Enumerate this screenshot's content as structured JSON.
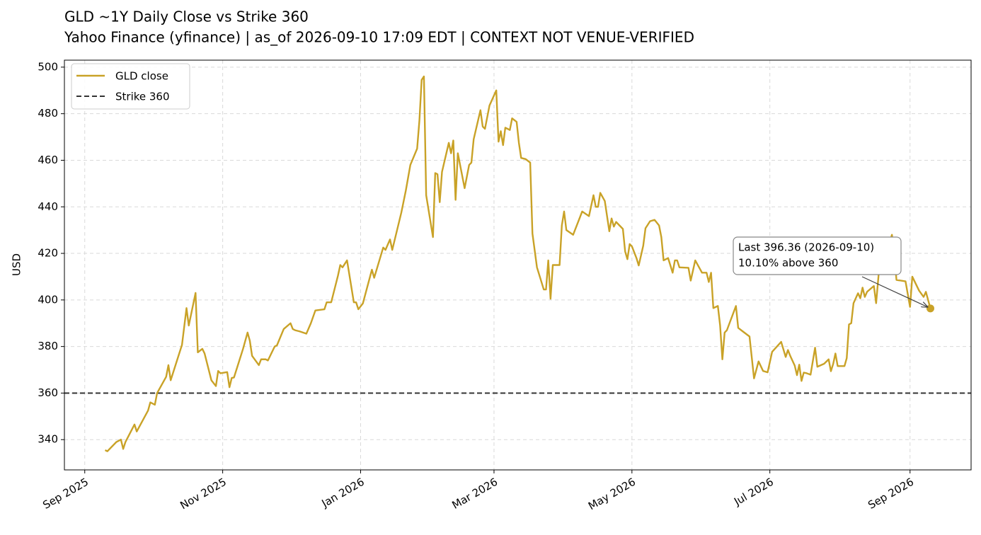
{
  "chart_data": {
    "type": "line",
    "title": "GLD ~1Y Daily Close vs Strike 360",
    "subtitle": "Yahoo Finance (yfinance) | as_of 2026-09-10 17:09 EDT | CONTEXT NOT VENUE-VERIFIED",
    "ylabel": "USD",
    "grid": true,
    "legend": "upper left",
    "x": [
      "2025-09-10",
      "2025-09-11",
      "2025-09-15",
      "2025-09-17",
      "2025-09-18",
      "2025-09-19",
      "2025-09-23",
      "2025-09-24",
      "2025-09-29",
      "2025-09-30",
      "2025-10-02",
      "2025-10-03",
      "2025-10-07",
      "2025-10-08",
      "2025-10-09",
      "2025-10-14",
      "2025-10-16",
      "2025-10-17",
      "2025-10-20",
      "2025-10-21",
      "2025-10-23",
      "2025-10-24",
      "2025-10-27",
      "2025-10-29",
      "2025-10-30",
      "2025-10-31",
      "2025-11-03",
      "2025-11-04",
      "2025-11-05",
      "2025-11-06",
      "2025-11-10",
      "2025-11-12",
      "2025-11-13",
      "2025-11-14",
      "2025-11-17",
      "2025-11-18",
      "2025-11-20",
      "2025-11-21",
      "2025-11-24",
      "2025-11-25",
      "2025-11-28",
      "2025-12-01",
      "2025-12-02",
      "2025-12-03",
      "2025-12-05",
      "2025-12-08",
      "2025-12-10",
      "2025-12-12",
      "2025-12-16",
      "2025-12-17",
      "2025-12-19",
      "2025-12-22",
      "2025-12-23",
      "2025-12-24",
      "2025-12-26",
      "2025-12-29",
      "2025-12-30",
      "2025-12-31",
      "2026-01-02",
      "2026-01-06",
      "2026-01-07",
      "2026-01-11",
      "2026-01-12",
      "2026-01-14",
      "2026-01-15",
      "2026-01-19",
      "2026-01-21",
      "2026-01-23",
      "2026-01-26",
      "2026-01-27",
      "2026-01-28",
      "2026-01-29",
      "2026-01-30",
      "2026-02-02",
      "2026-02-03",
      "2026-02-04",
      "2026-02-05",
      "2026-02-06",
      "2026-02-09",
      "2026-02-10",
      "2026-02-11",
      "2026-02-12",
      "2026-02-13",
      "2026-02-16",
      "2026-02-18",
      "2026-02-19",
      "2026-02-20",
      "2026-02-23",
      "2026-02-24",
      "2026-02-25",
      "2026-02-27",
      "2026-03-02",
      "2026-03-03",
      "2026-03-04",
      "2026-03-05",
      "2026-03-06",
      "2026-03-08",
      "2026-03-09",
      "2026-03-11",
      "2026-03-12",
      "2026-03-13",
      "2026-03-15",
      "2026-03-17",
      "2026-03-18",
      "2026-03-20",
      "2026-03-23",
      "2026-03-24",
      "2026-03-25",
      "2026-03-26",
      "2026-03-27",
      "2026-03-30",
      "2026-03-31",
      "2026-04-01",
      "2026-04-02",
      "2026-04-05",
      "2026-04-07",
      "2026-04-09",
      "2026-04-12",
      "2026-04-14",
      "2026-04-15",
      "2026-04-16",
      "2026-04-17",
      "2026-04-19",
      "2026-04-21",
      "2026-04-22",
      "2026-04-23",
      "2026-04-24",
      "2026-04-27",
      "2026-04-28",
      "2026-04-29",
      "2026-04-30",
      "2026-05-01",
      "2026-05-03",
      "2026-05-04",
      "2026-05-06",
      "2026-05-07",
      "2026-05-08",
      "2026-05-09",
      "2026-05-11",
      "2026-05-13",
      "2026-05-14",
      "2026-05-15",
      "2026-05-17",
      "2026-05-19",
      "2026-05-20",
      "2026-05-21",
      "2026-05-22",
      "2026-05-26",
      "2026-05-27",
      "2026-05-29",
      "2026-06-01",
      "2026-06-03",
      "2026-06-04",
      "2026-06-05",
      "2026-06-06",
      "2026-06-08",
      "2026-06-09",
      "2026-06-10",
      "2026-06-11",
      "2026-06-12",
      "2026-06-16",
      "2026-06-17",
      "2026-06-19",
      "2026-06-22",
      "2026-06-24",
      "2026-06-26",
      "2026-06-28",
      "2026-06-30",
      "2026-07-02",
      "2026-07-06",
      "2026-07-08",
      "2026-07-09",
      "2026-07-10",
      "2026-07-12",
      "2026-07-13",
      "2026-07-14",
      "2026-07-15",
      "2026-07-16",
      "2026-07-17",
      "2026-07-19",
      "2026-07-21",
      "2026-07-22",
      "2026-07-25",
      "2026-07-27",
      "2026-07-28",
      "2026-07-29",
      "2026-07-30",
      "2026-07-31",
      "2026-08-03",
      "2026-08-04",
      "2026-08-05",
      "2026-08-06",
      "2026-08-07",
      "2026-08-09",
      "2026-08-10",
      "2026-08-11",
      "2026-08-12",
      "2026-08-13",
      "2026-08-16",
      "2026-08-17",
      "2026-08-19",
      "2026-08-22",
      "2026-08-24",
      "2026-08-25",
      "2026-08-26",
      "2026-08-30",
      "2026-09-01",
      "2026-09-02",
      "2026-09-05",
      "2026-09-07",
      "2026-09-08",
      "2026-09-10"
    ],
    "series": [
      {
        "name": "GLD close",
        "color": "#c9a227",
        "values": [
          335.5,
          335,
          339,
          340,
          336,
          339,
          346.5,
          343.5,
          352.5,
          356,
          355,
          360,
          367,
          372,
          365.5,
          380.7,
          396.5,
          389,
          403,
          377.5,
          379,
          377,
          365.5,
          363,
          369.5,
          368.5,
          369,
          362.5,
          366.5,
          366.7,
          379,
          386,
          382.5,
          376,
          372,
          374.5,
          374.5,
          374,
          380,
          380.5,
          387.5,
          390,
          387.5,
          387,
          386.5,
          385.5,
          390,
          395.5,
          396,
          399,
          399,
          410.5,
          415,
          414,
          417,
          399,
          399,
          396,
          398.5,
          413,
          409.5,
          422.5,
          421.5,
          426,
          421.5,
          437.5,
          447,
          458,
          465,
          477,
          494.5,
          496,
          445,
          427,
          454.5,
          454,
          442,
          455,
          467.5,
          463,
          468.5,
          443,
          463,
          448,
          458,
          459,
          469,
          481.5,
          474.5,
          473.5,
          483.5,
          490,
          468,
          472.5,
          466.5,
          474,
          473,
          478,
          476.5,
          467.5,
          461,
          460.5,
          459,
          428.5,
          414,
          404.5,
          404.5,
          417,
          400.5,
          415,
          415,
          432,
          438,
          430,
          428,
          433,
          438,
          436,
          445,
          440,
          440,
          446,
          442.5,
          429.5,
          435,
          431.5,
          433.5,
          430.5,
          420.8,
          417.5,
          424,
          423,
          418,
          414.8,
          423.3,
          430.8,
          432.3,
          433.8,
          434.4,
          432,
          427,
          417,
          418,
          411.7,
          417,
          417,
          414,
          413.8,
          408.3,
          417,
          411.7,
          411.7,
          407.7,
          411.7,
          396.5,
          397.4,
          389,
          374.5,
          386,
          387,
          397.4,
          388,
          386.5,
          384.3,
          366.3,
          373.6,
          369.5,
          368.9,
          377.7,
          382,
          375.5,
          378.5,
          376,
          371.8,
          367.7,
          372.2,
          365.2,
          368.8,
          368.6,
          367.9,
          379.5,
          371.3,
          372.6,
          374.5,
          369.4,
          372.5,
          377,
          371.6,
          371.6,
          375,
          389.5,
          390,
          398.6,
          402.9,
          400.7,
          405.3,
          401.3,
          403.5,
          406,
          398.6,
          420.8,
          422,
          428,
          419.3,
          408.6,
          408,
          397,
          410,
          404,
          401.3,
          403.5,
          396.36
        ]
      }
    ],
    "reference_line": {
      "name": "Strike 360",
      "value": 360,
      "color": "#333333"
    },
    "annotation": {
      "lines": [
        "Last 396.36 (2026-09-10)",
        "10.10% above 360"
      ]
    },
    "xlim": [
      "2025-08-23",
      "2026-09-28"
    ],
    "xticks": [
      {
        "value": "2025-09-01",
        "label": "Sep 2025"
      },
      {
        "value": "2025-11-01",
        "label": "Nov 2025"
      },
      {
        "value": "2026-01-01",
        "label": "Jan 2026"
      },
      {
        "value": "2026-03-01",
        "label": "Mar 2026"
      },
      {
        "value": "2026-05-01",
        "label": "May 2026"
      },
      {
        "value": "2026-07-01",
        "label": "Jul 2026"
      },
      {
        "value": "2026-09-01",
        "label": "Sep 2026"
      }
    ],
    "ylim": [
      327,
      503
    ],
    "yticks": [
      340,
      360,
      380,
      400,
      420,
      440,
      460,
      480,
      500
    ]
  }
}
